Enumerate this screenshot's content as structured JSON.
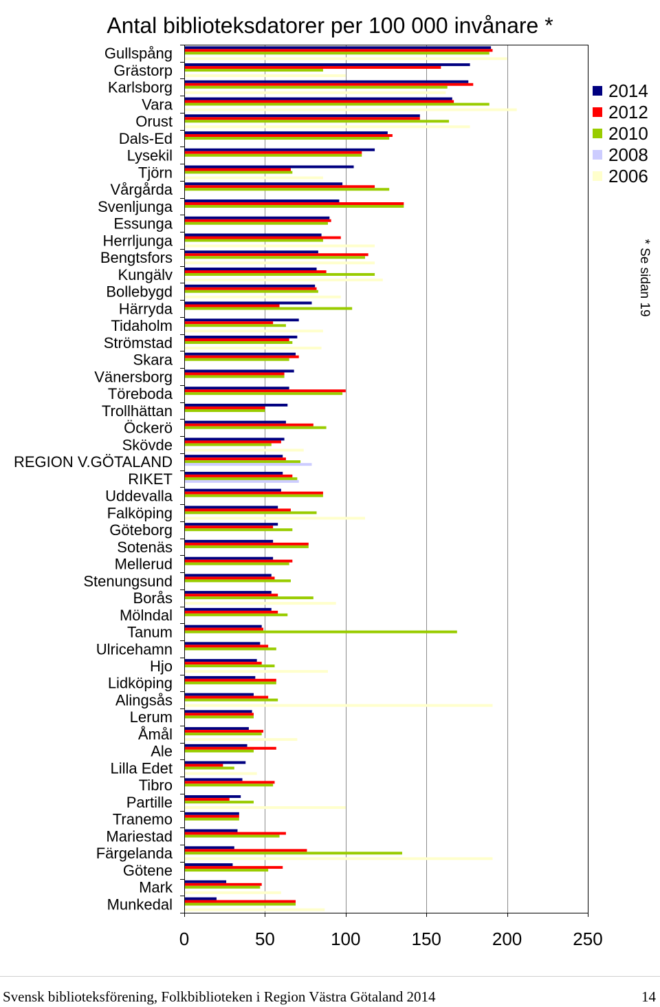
{
  "chart_data": {
    "type": "bar",
    "orientation": "horizontal",
    "title": "Antal biblioteksdatorer per 100 000 invånare *",
    "categories": [
      "Gullspång",
      "Grästorp",
      "Karlsborg",
      "Vara",
      "Orust",
      "Dals-Ed",
      "Lysekil",
      "Tjörn",
      "Vårgårda",
      "Svenljunga",
      "Essunga",
      "Herrljunga",
      "Bengtsfors",
      "Kungälv",
      "Bollebygd",
      "Härryda",
      "Tidaholm",
      "Strömstad",
      "Skara",
      "Vänersborg",
      "Töreboda",
      "Trollhättan",
      "Öckerö",
      "Skövde",
      "REGION V.GÖTALAND",
      "RIKET",
      "Uddevalla",
      "Falköping",
      "Göteborg",
      "Sotenäs",
      "Mellerud",
      "Stenungsund",
      "Borås",
      "Mölndal",
      "Tanum",
      "Ulricehamn",
      "Hjo",
      "Lidköping",
      "Alingsås",
      "Lerum",
      "Åmål",
      "Ale",
      "Lilla Edet",
      "Tibro",
      "Partille",
      "Tranemo",
      "Mariestad",
      "Färgelanda",
      "Götene",
      "Mark",
      "Munkedal"
    ],
    "series": [
      {
        "name": "2014",
        "color": "#000080",
        "values": [
          190,
          177,
          176,
          166,
          146,
          126,
          118,
          105,
          98,
          96,
          90,
          85,
          83,
          82,
          81,
          79,
          71,
          70,
          69,
          68,
          65,
          64,
          63,
          62,
          61,
          61,
          60,
          58,
          58,
          55,
          55,
          54,
          54,
          54,
          48,
          47,
          45,
          44,
          43,
          42,
          40,
          39,
          38,
          36,
          35,
          34,
          33,
          31,
          30,
          26,
          20
        ]
      },
      {
        "name": "2012",
        "color": "#ff0000",
        "values": [
          191,
          159,
          179,
          167,
          146,
          129,
          110,
          66,
          118,
          136,
          91,
          97,
          114,
          88,
          82,
          59,
          55,
          65,
          71,
          62,
          100,
          50,
          80,
          60,
          63,
          67,
          86,
          66,
          55,
          77,
          67,
          56,
          58,
          58,
          49,
          52,
          48,
          57,
          52,
          43,
          49,
          57,
          24,
          56,
          28,
          34,
          63,
          76,
          61,
          48,
          69
        ]
      },
      {
        "name": "2010",
        "color": "#99cc00",
        "values": [
          189,
          86,
          163,
          189,
          164,
          127,
          110,
          67,
          127,
          136,
          89,
          86,
          112,
          118,
          83,
          104,
          63,
          67,
          65,
          62,
          98,
          50,
          88,
          54,
          72,
          70,
          86,
          82,
          67,
          77,
          65,
          66,
          80,
          64,
          169,
          57,
          56,
          57,
          58,
          43,
          48,
          43,
          31,
          55,
          43,
          34,
          59,
          135,
          52,
          47,
          69
        ]
      },
      {
        "name": "2008",
        "color": "#ccccff",
        "values": [
          null,
          null,
          null,
          null,
          null,
          null,
          null,
          null,
          null,
          null,
          null,
          null,
          null,
          null,
          null,
          null,
          null,
          null,
          null,
          null,
          null,
          null,
          null,
          null,
          79,
          71,
          null,
          null,
          null,
          null,
          null,
          null,
          null,
          null,
          null,
          null,
          null,
          null,
          null,
          null,
          null,
          null,
          null,
          null,
          null,
          null,
          null,
          null,
          null,
          null,
          null
        ]
      },
      {
        "name": "2006",
        "color": "#ffffcc",
        "values": [
          200,
          100,
          162,
          206,
          177,
          null,
          null,
          86,
          null,
          null,
          null,
          118,
          118,
          123,
          97,
          null,
          86,
          85,
          null,
          null,
          null,
          null,
          null,
          74,
          null,
          null,
          null,
          112,
          null,
          null,
          null,
          null,
          94,
          null,
          null,
          null,
          89,
          null,
          191,
          null,
          70,
          null,
          45,
          null,
          100,
          null,
          null,
          191,
          null,
          60,
          87
        ]
      }
    ],
    "xlim": [
      0,
      250
    ],
    "x_ticks": [
      0,
      50,
      100,
      150,
      200,
      250
    ],
    "grid": true,
    "legend_position": "right"
  },
  "note": "* Se sidan 19",
  "footer": {
    "text": "Svensk biblioteksförening, Folkbiblioteken i Region Västra Götaland 2014",
    "page": "14"
  }
}
